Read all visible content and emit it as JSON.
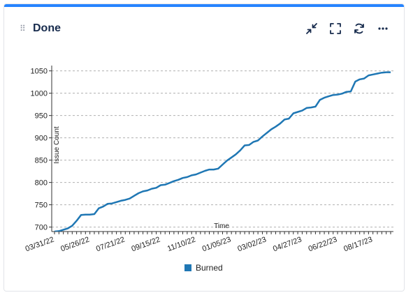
{
  "widget": {
    "title": "Done",
    "actions": {
      "collapse_icon": "collapse-arrows-icon",
      "expand_icon": "expand-icon",
      "refresh_icon": "refresh-icon",
      "more_icon": "more-icon"
    }
  },
  "colors": {
    "accent": "#2684ff",
    "series": "#1f77b4",
    "grid": "#b0b0b0"
  },
  "chart_data": {
    "type": "line",
    "title": "",
    "xlabel": "Time",
    "ylabel": "Issue Count",
    "ylim": [
      690,
      1062
    ],
    "y_ticks": [
      700,
      750,
      800,
      850,
      900,
      950,
      1000,
      1050
    ],
    "x_tick_labels": [
      "03/31/22",
      "05/26/22",
      "07/21/22",
      "09/15/22",
      "11/10/22",
      "01/05/23",
      "03/02/23",
      "04/27/23",
      "06/22/23",
      "08/17/23"
    ],
    "grid": "horizontal dashed",
    "legend_position": "bottom",
    "series": [
      {
        "name": "Burned",
        "x": [
          "03/31/22",
          "04/07/22",
          "04/14/22",
          "04/21/22",
          "04/28/22",
          "05/05/22",
          "05/12/22",
          "05/19/22",
          "05/26/22",
          "06/02/22",
          "06/09/22",
          "06/16/22",
          "06/23/22",
          "06/30/22",
          "07/07/22",
          "07/14/22",
          "07/21/22",
          "07/28/22",
          "08/04/22",
          "08/11/22",
          "08/18/22",
          "08/25/22",
          "09/01/22",
          "09/08/22",
          "09/15/22",
          "09/22/22",
          "09/29/22",
          "10/06/22",
          "10/13/22",
          "10/20/22",
          "10/27/22",
          "11/03/22",
          "11/10/22",
          "11/17/22",
          "11/24/22",
          "12/01/22",
          "12/08/22",
          "12/15/22",
          "12/22/22",
          "12/29/22",
          "01/05/23",
          "01/12/23",
          "01/19/23",
          "01/26/23",
          "02/02/23",
          "02/09/23",
          "02/16/23",
          "02/23/23",
          "03/02/23",
          "03/09/23",
          "03/16/23",
          "03/23/23",
          "03/30/23",
          "04/06/23",
          "04/13/23",
          "04/20/23",
          "04/27/23",
          "05/04/23",
          "05/11/23",
          "05/18/23",
          "05/25/23",
          "06/01/23",
          "06/08/23",
          "06/15/23",
          "06/22/23",
          "06/29/23",
          "07/06/23",
          "07/13/23",
          "07/20/23",
          "07/27/23",
          "08/03/23",
          "08/10/23",
          "08/17/23",
          "08/24/23",
          "08/31/23",
          "09/07/23",
          "09/14/23"
        ],
        "values": [
          689,
          691,
          694,
          697,
          703,
          714,
          727,
          728,
          728,
          729,
          742,
          746,
          752,
          753,
          756,
          759,
          761,
          764,
          770,
          776,
          780,
          782,
          786,
          788,
          794,
          795,
          799,
          803,
          806,
          810,
          812,
          816,
          818,
          822,
          826,
          829,
          829,
          831,
          840,
          849,
          856,
          863,
          872,
          883,
          884,
          891,
          894,
          903,
          911,
          919,
          925,
          932,
          941,
          943,
          955,
          958,
          961,
          967,
          968,
          970,
          985,
          990,
          993,
          996,
          997,
          999,
          1003,
          1004,
          1026,
          1031,
          1033,
          1040,
          1042,
          1044,
          1046,
          1047,
          1047
        ]
      }
    ]
  }
}
